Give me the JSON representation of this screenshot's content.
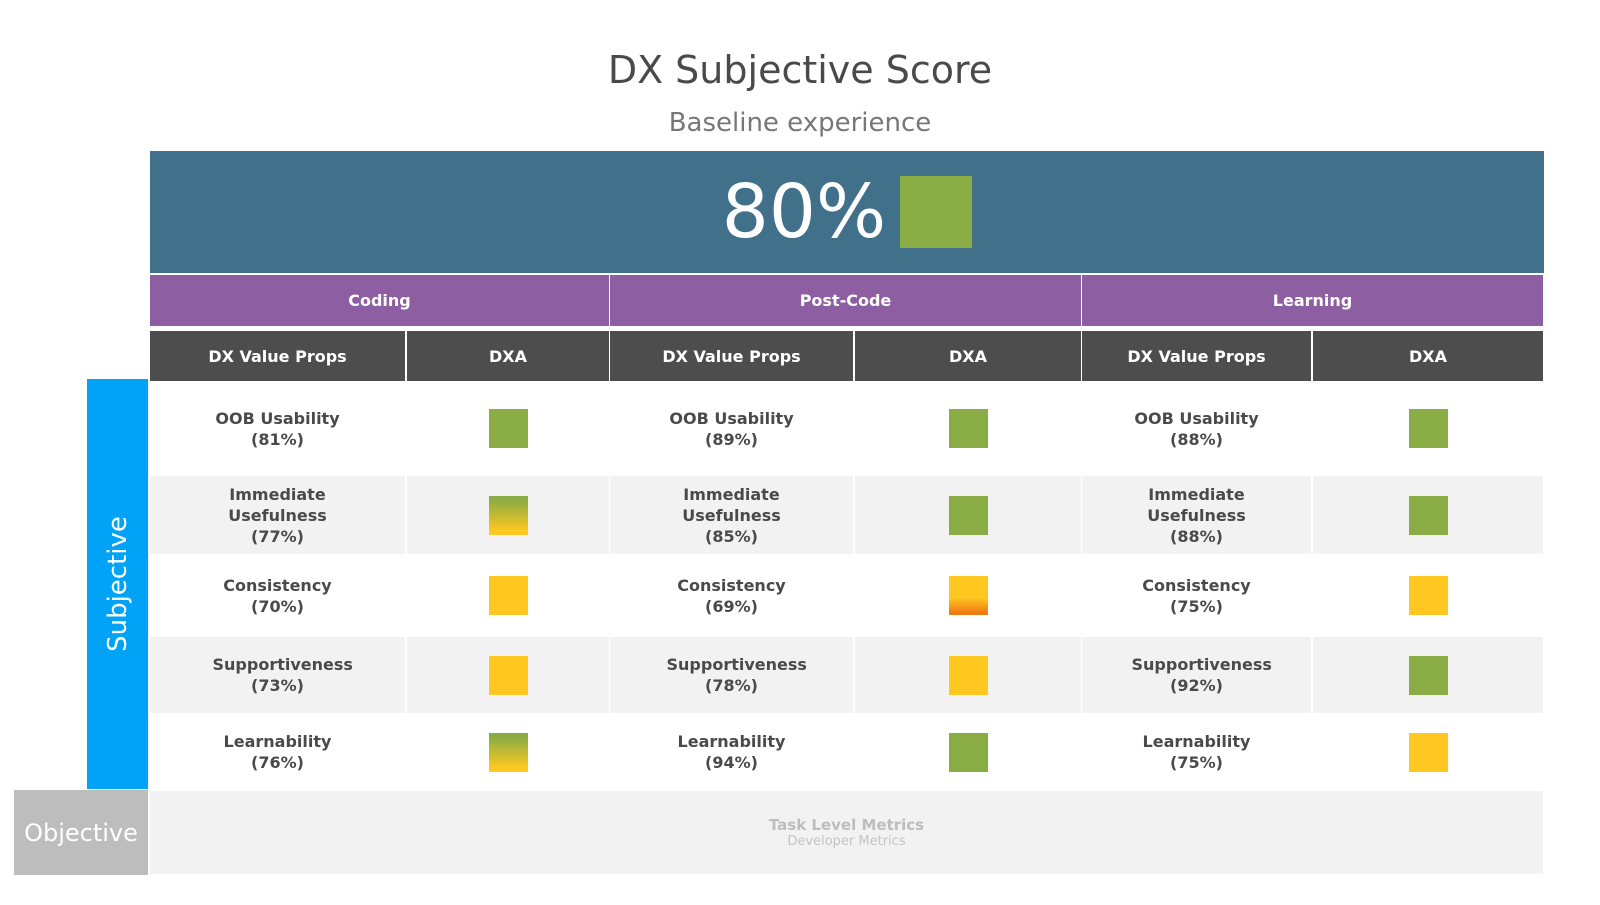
{
  "title": "DX Subjective Score",
  "subtitle": "Baseline experience",
  "overall": {
    "score": "80%",
    "status": "green"
  },
  "phases": [
    {
      "name": "Coding",
      "header_props": "DX Value Props",
      "header_dxa": "DXA",
      "rows": [
        {
          "label": "OOB Usability",
          "pct": "(81%)",
          "status": "green"
        },
        {
          "label": "Immediate Usefulness",
          "pct": "(77%)",
          "status": "green-yellow"
        },
        {
          "label": "Consistency",
          "pct": "(70%)",
          "status": "yellow"
        },
        {
          "label": "Supportiveness",
          "pct": "(73%)",
          "status": "yellow"
        },
        {
          "label": "Learnability",
          "pct": "(76%)",
          "status": "green-yellow"
        }
      ]
    },
    {
      "name": "Post-Code",
      "header_props": "DX Value Props",
      "header_dxa": "DXA",
      "rows": [
        {
          "label": "OOB Usability",
          "pct": "(89%)",
          "status": "green"
        },
        {
          "label": "Immediate Usefulness",
          "pct": "(85%)",
          "status": "green"
        },
        {
          "label": "Consistency",
          "pct": "(69%)",
          "status": "yellow-orange"
        },
        {
          "label": "Supportiveness",
          "pct": "(78%)",
          "status": "yellow"
        },
        {
          "label": "Learnability",
          "pct": "(94%)",
          "status": "green"
        }
      ]
    },
    {
      "name": "Learning",
      "header_props": "DX Value Props",
      "header_dxa": "DXA",
      "rows": [
        {
          "label": "OOB Usability",
          "pct": "(88%)",
          "status": "green"
        },
        {
          "label": "Immediate Usefulness",
          "pct": "(88%)",
          "status": "green"
        },
        {
          "label": "Consistency",
          "pct": "(75%)",
          "status": "yellow"
        },
        {
          "label": "Supportiveness",
          "pct": "(92%)",
          "status": "green"
        },
        {
          "label": "Learnability",
          "pct": "(75%)",
          "status": "yellow"
        }
      ]
    }
  ],
  "side": {
    "subjective": "Subjective",
    "objective": "Objective"
  },
  "objective_row": {
    "title": "Task Level Metrics",
    "subtitle": "Developer Metrics"
  },
  "colors": {
    "banner": "#41718a",
    "phase": "#8e5ea2",
    "header": "#4d4d4d",
    "green": "#8aac44",
    "yellow": "#ffc820",
    "orange": "#f07a14",
    "subjective": "#00a3f5",
    "objective": "#bdbdbd"
  }
}
